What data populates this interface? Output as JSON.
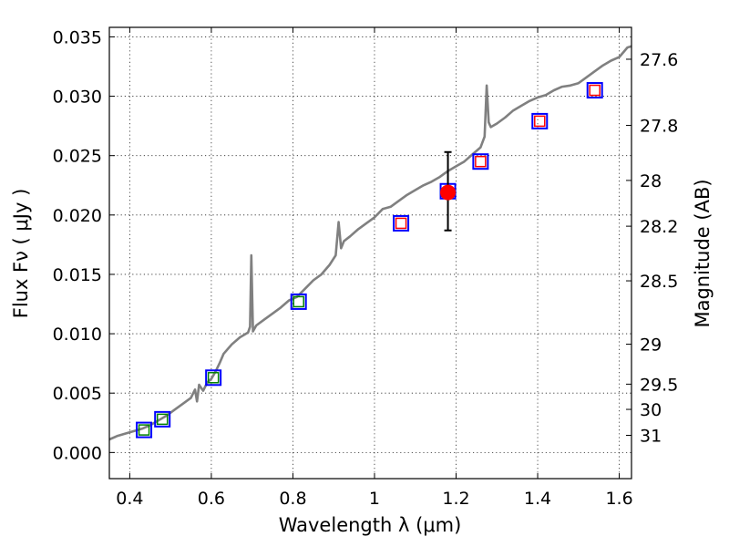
{
  "chart_data": {
    "type": "scatter",
    "xlabel": "Wavelength  λ (μm)",
    "ylabel": "Flux  Fν  ( μJy )",
    "ylabel_right": "Magnitude (AB)",
    "xlim": [
      0.35,
      1.63
    ],
    "ylim": [
      -0.0022,
      0.0358
    ],
    "grid": true,
    "x_ticks": [
      {
        "value": 0.4,
        "label": "0.4"
      },
      {
        "value": 0.6,
        "label": "0.6"
      },
      {
        "value": 0.8,
        "label": "0.8"
      },
      {
        "value": 1.0,
        "label": "1"
      },
      {
        "value": 1.2,
        "label": "1.2"
      },
      {
        "value": 1.4,
        "label": "1.4"
      },
      {
        "value": 1.6,
        "label": "1.6"
      }
    ],
    "y_ticks": [
      {
        "value": 0.0,
        "label": "0.000"
      },
      {
        "value": 0.005,
        "label": "0.005"
      },
      {
        "value": 0.01,
        "label": "0.010"
      },
      {
        "value": 0.015,
        "label": "0.015"
      },
      {
        "value": 0.02,
        "label": "0.020"
      },
      {
        "value": 0.025,
        "label": "0.025"
      },
      {
        "value": 0.03,
        "label": "0.030"
      },
      {
        "value": 0.035,
        "label": "0.035"
      }
    ],
    "right_ticks": [
      {
        "mag": 27.6,
        "label": "27.6"
      },
      {
        "mag": 27.8,
        "label": "27.8"
      },
      {
        "mag": 28.0,
        "label": "28"
      },
      {
        "mag": 28.2,
        "label": "28.2"
      },
      {
        "mag": 28.5,
        "label": "28.5"
      },
      {
        "mag": 29.0,
        "label": "29"
      },
      {
        "mag": 29.5,
        "label": "29.5"
      },
      {
        "mag": 30.0,
        "label": "30"
      },
      {
        "mag": 31.0,
        "label": "31"
      }
    ],
    "series": [
      {
        "name": "SED model spectrum",
        "style": "line",
        "color": "#808080",
        "x": [
          0.35,
          0.37,
          0.39,
          0.41,
          0.43,
          0.45,
          0.47,
          0.49,
          0.51,
          0.53,
          0.55,
          0.56,
          0.565,
          0.57,
          0.58,
          0.59,
          0.6,
          0.61,
          0.62,
          0.63,
          0.65,
          0.67,
          0.69,
          0.695,
          0.698,
          0.702,
          0.71,
          0.73,
          0.75,
          0.77,
          0.79,
          0.81,
          0.83,
          0.85,
          0.87,
          0.89,
          0.905,
          0.912,
          0.918,
          0.925,
          0.94,
          0.96,
          0.98,
          1.0,
          1.02,
          1.04,
          1.06,
          1.08,
          1.1,
          1.12,
          1.14,
          1.16,
          1.18,
          1.2,
          1.22,
          1.24,
          1.26,
          1.27,
          1.275,
          1.28,
          1.285,
          1.3,
          1.32,
          1.34,
          1.36,
          1.38,
          1.4,
          1.42,
          1.44,
          1.46,
          1.48,
          1.5,
          1.52,
          1.54,
          1.56,
          1.58,
          1.6,
          1.62,
          1.63
        ],
        "values": [
          0.0011,
          0.0014,
          0.0016,
          0.0018,
          0.002,
          0.0023,
          0.0027,
          0.0031,
          0.0036,
          0.0041,
          0.0046,
          0.0053,
          0.0043,
          0.0057,
          0.0052,
          0.0059,
          0.0062,
          0.0068,
          0.0075,
          0.0083,
          0.0091,
          0.0097,
          0.0101,
          0.0106,
          0.0166,
          0.0102,
          0.0107,
          0.0112,
          0.0117,
          0.0122,
          0.0128,
          0.0131,
          0.0138,
          0.0145,
          0.015,
          0.0158,
          0.0166,
          0.0194,
          0.0172,
          0.0178,
          0.0182,
          0.0188,
          0.0193,
          0.0198,
          0.0205,
          0.0207,
          0.0212,
          0.0217,
          0.0221,
          0.0225,
          0.0228,
          0.0232,
          0.0237,
          0.0241,
          0.0245,
          0.0251,
          0.0257,
          0.0266,
          0.0309,
          0.0278,
          0.0274,
          0.0277,
          0.0282,
          0.0288,
          0.0292,
          0.0296,
          0.0299,
          0.0301,
          0.0305,
          0.0308,
          0.0309,
          0.0311,
          0.0316,
          0.0321,
          0.0326,
          0.033,
          0.0333,
          0.0341,
          0.0342
        ]
      },
      {
        "name": "Model synthetic photometry (blue squares)",
        "style": "square-blue",
        "color": "#0000ff",
        "x": [
          0.435,
          0.48,
          0.605,
          0.814,
          1.065,
          1.18,
          1.26,
          1.405,
          1.54
        ],
        "values": [
          0.0019,
          0.0028,
          0.0063,
          0.0127,
          0.0193,
          0.022,
          0.0245,
          0.0279,
          0.0305
        ]
      },
      {
        "name": "Optical observed photometry (green squares)",
        "style": "square-green",
        "color": "#008000",
        "x": [
          0.435,
          0.48,
          0.605,
          0.814
        ],
        "values": [
          0.0019,
          0.0028,
          0.0063,
          0.0127
        ]
      },
      {
        "name": "NIR observed photometry (red squares)",
        "style": "square-red",
        "color": "#ff0000",
        "x": [
          1.065,
          1.26,
          1.405,
          1.54
        ],
        "values": [
          0.0193,
          0.0245,
          0.0279,
          0.0305
        ]
      },
      {
        "name": "Measured flux with error",
        "style": "circle-red",
        "color": "#ff0000",
        "x": [
          1.18
        ],
        "values": [
          0.0219
        ],
        "err_low": [
          0.0187
        ],
        "err_high": [
          0.0253
        ]
      }
    ]
  }
}
